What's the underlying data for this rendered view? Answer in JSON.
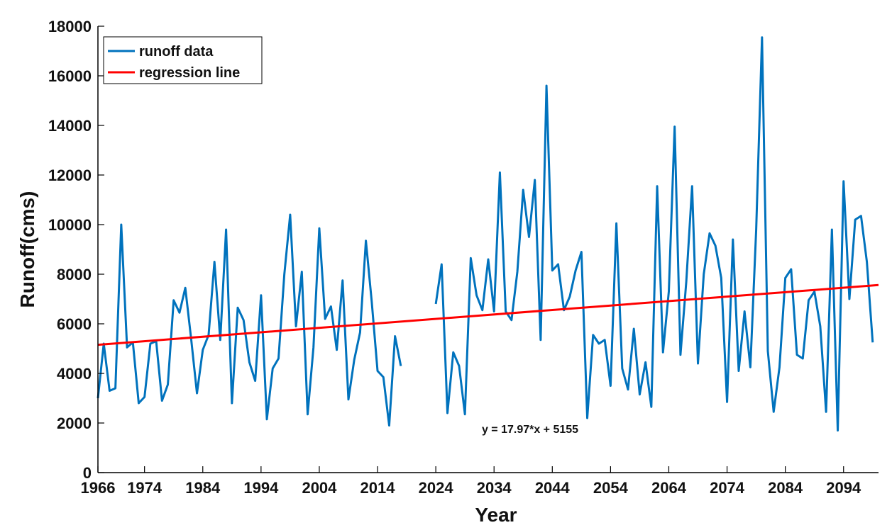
{
  "chart_data": {
    "type": "line",
    "xlabel": "Year",
    "ylabel": "Runoff(cms)",
    "xlim": [
      1966,
      2100
    ],
    "ylim": [
      0,
      18000
    ],
    "x_ticks": [
      1966,
      1974,
      1984,
      1994,
      2004,
      2014,
      2024,
      2034,
      2044,
      2054,
      2064,
      2074,
      2084,
      2094
    ],
    "y_ticks": [
      0,
      2000,
      4000,
      6000,
      8000,
      10000,
      12000,
      14000,
      16000,
      18000
    ],
    "grid": false,
    "legend": {
      "placement": "top-left",
      "entries": [
        "runoff data",
        "regression line"
      ]
    },
    "annotation": {
      "text": "y = 17.97*x + 5155",
      "x": 2037,
      "y": 1700
    },
    "series": [
      {
        "name": "runoff data",
        "color": "#0072BD",
        "segments": [
          {
            "start_year": 1966,
            "values": [
              3000,
              5200,
              3300,
              3400,
              10000,
              5050,
              5250,
              2800,
              3050,
              5200,
              5300,
              2900,
              3550,
              6950,
              6450,
              7450,
              5400,
              3200,
              4950,
              5550,
              8500,
              5350,
              9800,
              2800,
              6650,
              6150,
              4450,
              3700,
              7150,
              2150,
              4200,
              4600,
              8000,
              10400,
              5900,
              8100,
              2350,
              5050,
              9850,
              6200,
              6700,
              4950,
              7750,
              2950,
              4550,
              5650,
              9350,
              6900,
              4100,
              3850,
              1900,
              5500,
              4300
            ]
          },
          {
            "start_year": 2024,
            "values": [
              6800,
              8400,
              2400,
              4850,
              4300,
              2350,
              8650,
              7150,
              6550,
              8600,
              6500,
              12100,
              6500,
              6150,
              8100,
              11400,
              9500,
              11800,
              5350,
              15600,
              8150,
              8400,
              6550,
              7100,
              8150,
              8900,
              2200,
              5550,
              5200,
              5350,
              3500,
              10050,
              4200,
              3350,
              5800,
              3150,
              4450,
              2650,
              11550,
              4850,
              7300,
              13950,
              4750,
              7700,
              11550,
              4400,
              8000,
              9650,
              9150,
              7850,
              2850,
              9400,
              4100,
              6500,
              4250,
              9800,
              17550,
              4900,
              2450,
              4250,
              7850,
              8200,
              4750,
              4600,
              6950,
              7300,
              5900,
              2450,
              9800,
              1700,
              11750,
              7000,
              10200,
              10350,
              8500,
              5250
            ]
          }
        ]
      },
      {
        "name": "regression line",
        "color": "#FF0000",
        "equation": {
          "slope": 17.97,
          "intercept": 5155,
          "x_origin": 1966
        },
        "x": [
          1966,
          2100
        ],
        "y": [
          5155,
          7563
        ]
      }
    ]
  }
}
